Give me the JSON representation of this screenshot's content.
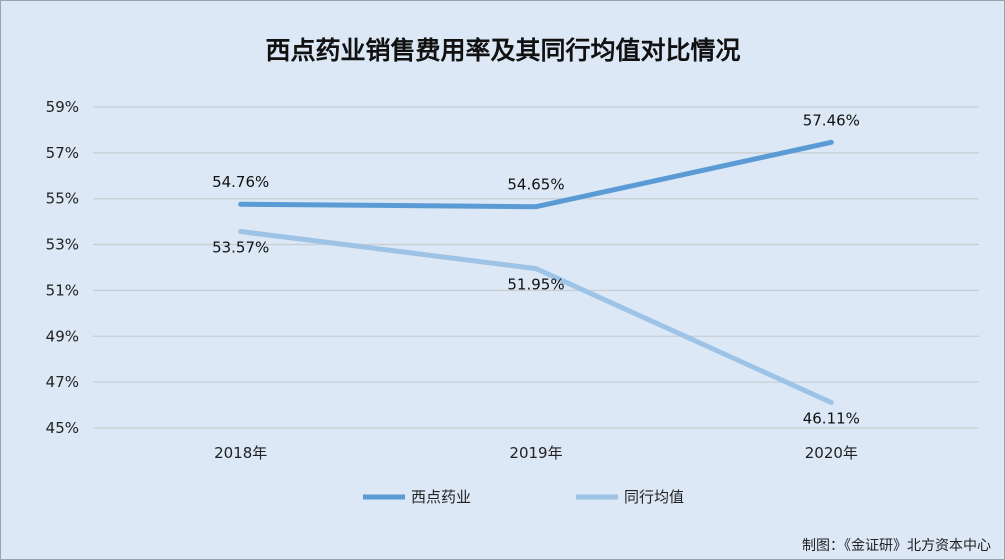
{
  "chart_data": {
    "type": "line",
    "title": "西点药业销售费用率及其同行均值对比情况",
    "categories": [
      "2018年",
      "2019年",
      "2020年"
    ],
    "series": [
      {
        "name": "西点药业",
        "values": [
          54.76,
          54.65,
          57.46
        ],
        "labels": [
          "54.76%",
          "54.65%",
          "57.46%"
        ],
        "color": "#5b9bd5"
      },
      {
        "name": "同行均值",
        "values": [
          53.57,
          51.95,
          46.11
        ],
        "labels": [
          "53.57%",
          "51.95%",
          "46.11%"
        ],
        "color": "#9dc3e6"
      }
    ],
    "ylim": [
      45,
      59
    ],
    "yticks": [
      "45%",
      "47%",
      "49%",
      "51%",
      "53%",
      "55%",
      "57%",
      "59%"
    ],
    "grid": true,
    "legend_position": "bottom",
    "background": "#dce8f5",
    "gridline_color": "#c9ced4"
  },
  "footer": {
    "source": "制图：《金证研》北方资本中心"
  }
}
